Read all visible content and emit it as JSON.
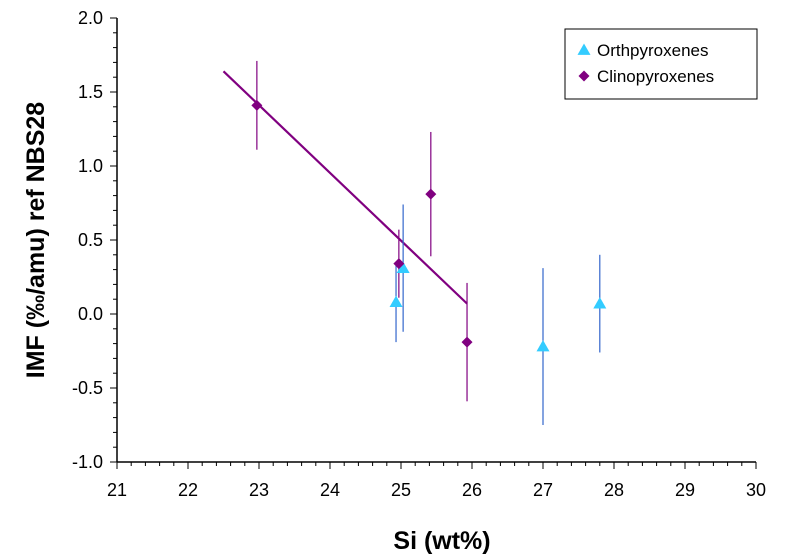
{
  "chart_data": {
    "type": "scatter",
    "xlabel": "Si (wt%)",
    "ylabel": "IMF (‰/amu) ref NBS28",
    "xlim": [
      21,
      30
    ],
    "ylim": [
      -1.0,
      2.0
    ],
    "x_ticks": [
      "21",
      "22",
      "23",
      "24",
      "25",
      "26",
      "27",
      "28",
      "29",
      "30"
    ],
    "y_ticks": [
      "-1.0",
      "-0.5",
      "0.0",
      "0.5",
      "1.0",
      "1.5",
      "2.0"
    ],
    "grid": false,
    "legend_position": "top-right",
    "series": [
      {
        "name": "Orthpyroxenes",
        "marker": "triangle",
        "color": "#33CCFF",
        "error_color": "#3366CC",
        "points": [
          {
            "x": 24.93,
            "y": 0.08,
            "err": 0.27
          },
          {
            "x": 25.03,
            "y": 0.31,
            "err": 0.43
          },
          {
            "x": 27.0,
            "y": -0.22,
            "err": 0.53
          },
          {
            "x": 27.8,
            "y": 0.07,
            "err": 0.33
          }
        ]
      },
      {
        "name": "Clinopyroxenes",
        "marker": "diamond",
        "color": "#800080",
        "error_color": "#800080",
        "points": [
          {
            "x": 22.97,
            "y": 1.41,
            "err": 0.3
          },
          {
            "x": 24.97,
            "y": 0.34,
            "err": 0.23
          },
          {
            "x": 25.42,
            "y": 0.81,
            "err": 0.42
          },
          {
            "x": 25.93,
            "y": -0.19,
            "err": 0.4
          }
        ]
      }
    ],
    "trendline": {
      "series": "Clinopyroxenes",
      "color": "#800080",
      "x": [
        22.5,
        25.93
      ],
      "y": [
        1.64,
        0.07
      ]
    }
  }
}
